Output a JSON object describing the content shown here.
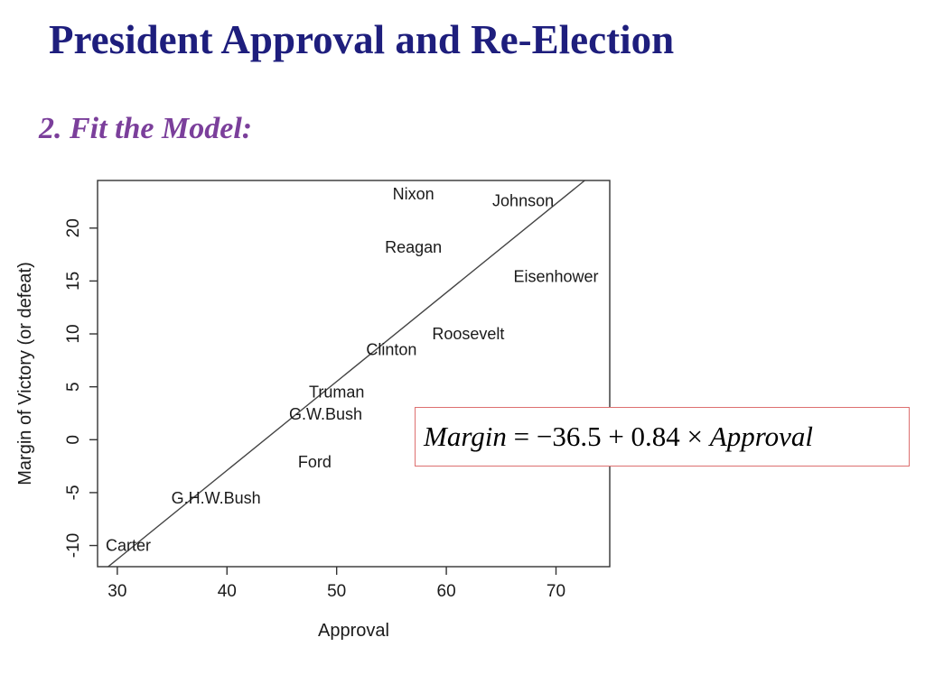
{
  "slide": {
    "title": "President Approval and Re-Election",
    "subtitle": "2. Fit the Model:"
  },
  "equation": {
    "lhs": "Margin",
    "mid": " = −36.5 + 0.84 × ",
    "rhs": "Approval"
  },
  "chart_data": {
    "type": "scatter",
    "title": "",
    "xlabel": "Approval",
    "ylabel": "Margin of Victory (or defeat)",
    "xlim": [
      28.2,
      74.9
    ],
    "ylim": [
      -12,
      24.5
    ],
    "x_ticks": [
      30,
      40,
      50,
      60,
      70
    ],
    "y_ticks": [
      -10,
      -5,
      0,
      5,
      10,
      15,
      20
    ],
    "grid": false,
    "marker": "text-labels-only",
    "points": [
      {
        "label": "Carter",
        "x": 31,
        "y": -10
      },
      {
        "label": "G.H.W.Bush",
        "x": 39,
        "y": -5.5
      },
      {
        "label": "Ford",
        "x": 48,
        "y": -2.1
      },
      {
        "label": "G.W.Bush",
        "x": 49,
        "y": 2.4
      },
      {
        "label": "Truman",
        "x": 50,
        "y": 4.5
      },
      {
        "label": "Clinton",
        "x": 55,
        "y": 8.5
      },
      {
        "label": "Roosevelt",
        "x": 62,
        "y": 10
      },
      {
        "label": "Reagan",
        "x": 57,
        "y": 18.2
      },
      {
        "label": "Nixon",
        "x": 57,
        "y": 23.2
      },
      {
        "label": "Eisenhower",
        "x": 70,
        "y": 15.4
      },
      {
        "label": "Johnson",
        "x": 67,
        "y": 22.6
      }
    ],
    "regression_line": {
      "intercept": -36.5,
      "slope": 0.84
    }
  }
}
